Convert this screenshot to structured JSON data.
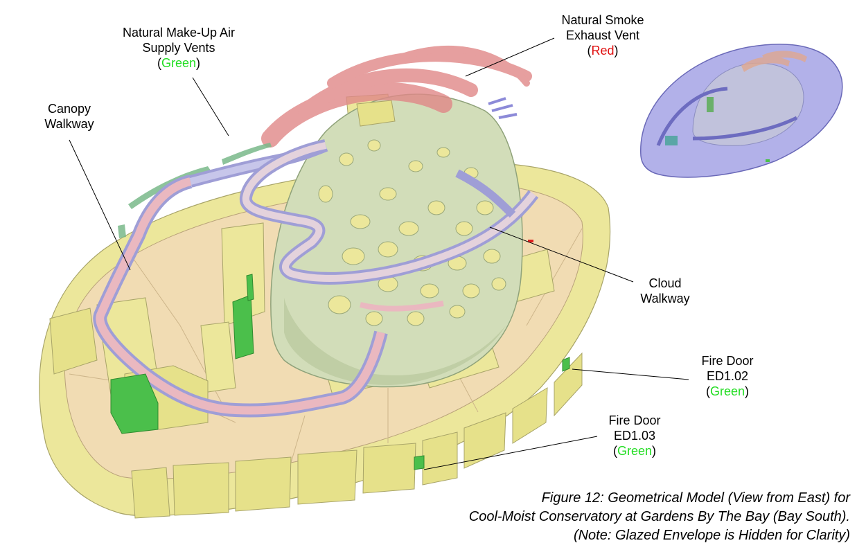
{
  "colors": {
    "floor": "#f1dcb3",
    "rim": "#ece79b",
    "mountain": "#d2ddb9",
    "walkway_pink": "#eab8c0",
    "walkway_blue": "#b7b6e2",
    "vent_red": "#e08888",
    "vent_green": "#7ab98a",
    "door_green": "#4bbf4b",
    "inset_blue": "#9897e2"
  },
  "labels": {
    "makeup_air": {
      "line1": "Natural Make-Up Air",
      "line2": "Supply Vents",
      "open": "(",
      "color_word": "Green",
      "close": ")"
    },
    "smoke_vent": {
      "line1": "Natural Smoke",
      "line2": "Exhaust Vent",
      "open": "(",
      "color_word": "Red",
      "close": ")"
    },
    "canopy": {
      "line1": "Canopy",
      "line2": "Walkway"
    },
    "cloud": {
      "line1": "Cloud",
      "line2": "Walkway"
    },
    "fire_door_102": {
      "line1": "Fire Door",
      "line2": "ED1.02",
      "open": "(",
      "color_word": "Green",
      "close": ")"
    },
    "fire_door_103": {
      "line1": "Fire Door",
      "line2": "ED1.03",
      "open": "(",
      "color_word": "Green",
      "close": ")"
    }
  },
  "caption": {
    "line1": "Figure 12: Geometrical Model (View from East) for",
    "line2": "Cool-Moist Conservatory at Gardens By The Bay (Bay South).",
    "line3": "(Note: Glazed Envelope is Hidden for Clarity)"
  }
}
